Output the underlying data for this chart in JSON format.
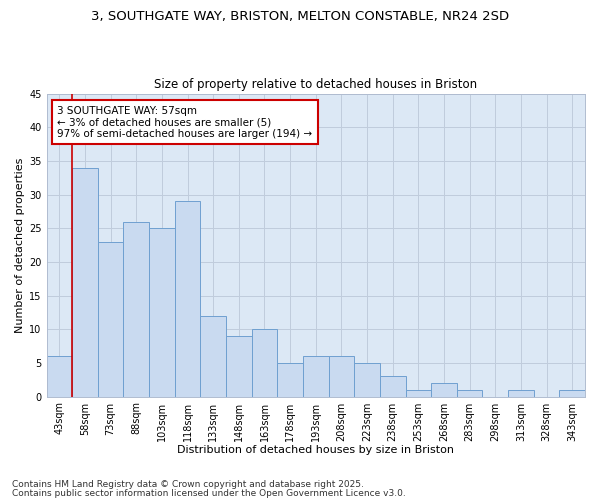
{
  "title1": "3, SOUTHGATE WAY, BRISTON, MELTON CONSTABLE, NR24 2SD",
  "title2": "Size of property relative to detached houses in Briston",
  "xlabel": "Distribution of detached houses by size in Briston",
  "ylabel": "Number of detached properties",
  "categories": [
    "43sqm",
    "58sqm",
    "73sqm",
    "88sqm",
    "103sqm",
    "118sqm",
    "133sqm",
    "148sqm",
    "163sqm",
    "178sqm",
    "193sqm",
    "208sqm",
    "223sqm",
    "238sqm",
    "253sqm",
    "268sqm",
    "283sqm",
    "298sqm",
    "313sqm",
    "328sqm",
    "343sqm"
  ],
  "values": [
    6,
    34,
    23,
    26,
    25,
    29,
    12,
    9,
    10,
    5,
    6,
    6,
    5,
    3,
    1,
    2,
    1,
    0,
    1,
    0,
    1
  ],
  "bar_color": "#c9daf0",
  "bar_edge_color": "#6fa0d0",
  "annotation_line1": "3 SOUTHGATE WAY: 57sqm",
  "annotation_line2": "← 3% of detached houses are smaller (5)",
  "annotation_line3": "97% of semi-detached houses are larger (194) →",
  "annotation_box_color": "#ffffff",
  "annotation_box_edge_color": "#cc0000",
  "vline_color": "#cc0000",
  "ylim": [
    0,
    45
  ],
  "yticks": [
    0,
    5,
    10,
    15,
    20,
    25,
    30,
    35,
    40,
    45
  ],
  "grid_color": "#c0ccdc",
  "bg_color": "#dce8f5",
  "footer1": "Contains HM Land Registry data © Crown copyright and database right 2025.",
  "footer2": "Contains public sector information licensed under the Open Government Licence v3.0.",
  "title1_fontsize": 9.5,
  "title2_fontsize": 8.5,
  "xlabel_fontsize": 8,
  "ylabel_fontsize": 8,
  "tick_fontsize": 7,
  "annot_fontsize": 7.5,
  "footer_fontsize": 6.5
}
